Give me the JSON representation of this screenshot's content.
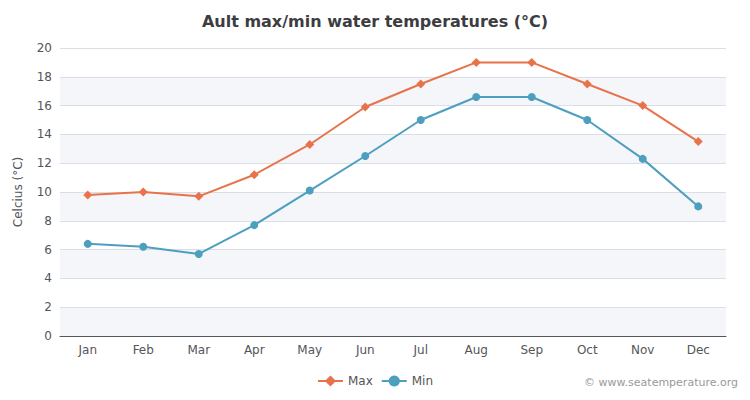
{
  "chart_data": {
    "type": "line",
    "title": "Ault max/min water temperatures (°C)",
    "ylabel": "Celcius (°C)",
    "categories": [
      "Jan",
      "Feb",
      "Mar",
      "Apr",
      "May",
      "Jun",
      "Jul",
      "Aug",
      "Sep",
      "Oct",
      "Nov",
      "Dec"
    ],
    "series": [
      {
        "name": "Max",
        "color": "#E8734A",
        "marker": "diamond",
        "values": [
          9.8,
          10.0,
          9.7,
          11.2,
          13.3,
          15.9,
          17.5,
          19.0,
          19.0,
          17.5,
          16.0,
          13.5
        ]
      },
      {
        "name": "Min",
        "color": "#4D9FBF",
        "marker": "circle",
        "values": [
          6.4,
          6.2,
          5.7,
          7.7,
          10.1,
          12.5,
          15.0,
          16.6,
          16.6,
          15.0,
          12.3,
          9.0
        ]
      }
    ],
    "ylim": [
      0,
      20
    ],
    "yticks": [
      0,
      2,
      4,
      6,
      8,
      10,
      12,
      14,
      16,
      18,
      20
    ],
    "grid": true,
    "legend": "bottom",
    "annotation": "© www.seatemperature.org"
  }
}
